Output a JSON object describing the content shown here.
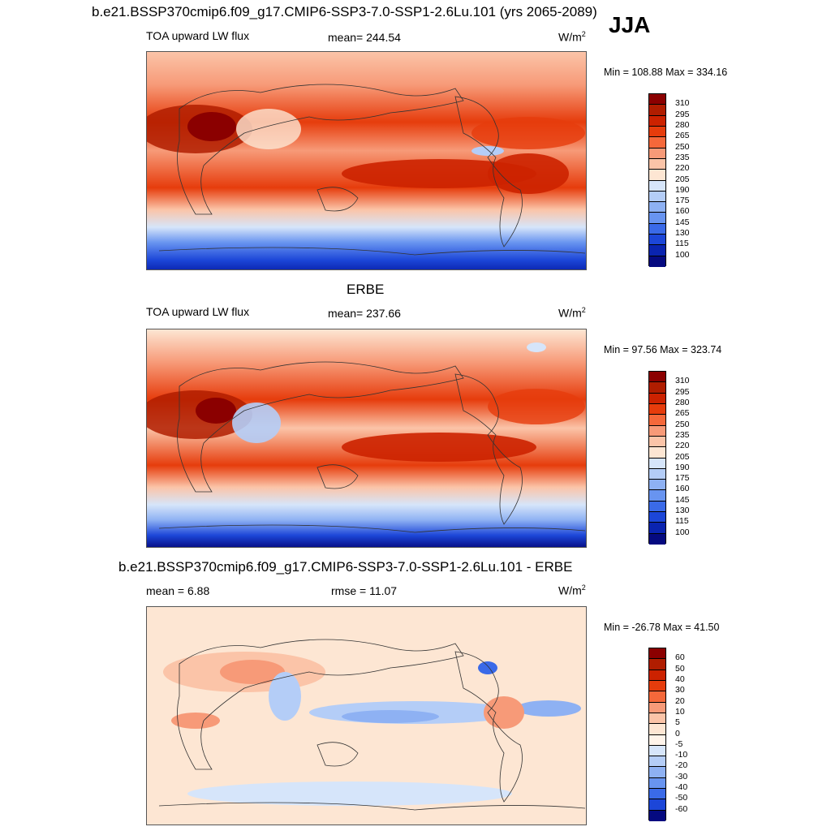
{
  "season": "JJA",
  "panels": [
    {
      "title": "b.e21.BSSP370cmip6.f09_g17.CMIP6-SSP3-7.0-SSP1-2.6Lu.101 (yrs 2065-2089)",
      "variable": "TOA upward LW flux",
      "stat_center": "mean= 244.54",
      "units": "W/m",
      "units_exp": "2",
      "minmax": "Min = 108.88 Max = 334.16"
    },
    {
      "title": "ERBE",
      "variable": "TOA upward LW flux",
      "stat_center": "mean= 237.66",
      "units": "W/m",
      "units_exp": "2",
      "minmax": "Min =  97.56 Max = 323.74"
    },
    {
      "title": "b.e21.BSSP370cmip6.f09_g17.CMIP6-SSP3-7.0-SSP1-2.6Lu.101 - ERBE",
      "variable": "mean =   6.88",
      "stat_center": "rmse =  11.07",
      "units": "W/m",
      "units_exp": "2",
      "minmax": "Min = -26.78 Max =  41.50"
    }
  ],
  "colorbars": {
    "absolute": {
      "labels": [
        "310",
        "295",
        "280",
        "265",
        "250",
        "235",
        "220",
        "205",
        "190",
        "175",
        "160",
        "145",
        "130",
        "115",
        "100"
      ],
      "colors": [
        "#8b0000",
        "#b01d00",
        "#cc2200",
        "#e63c0c",
        "#f5683a",
        "#f79a78",
        "#fbc4a8",
        "#fde6d3",
        "#d6e5fa",
        "#b4cdf7",
        "#8eb1f3",
        "#6894f0",
        "#3a6ae8",
        "#1c46d8",
        "#0a24b0",
        "#050a80"
      ]
    },
    "difference": {
      "labels": [
        "60",
        "50",
        "40",
        "30",
        "20",
        "10",
        "5",
        "0",
        "-5",
        "-10",
        "-20",
        "-30",
        "-40",
        "-50",
        "-60"
      ],
      "colors": [
        "#8b0000",
        "#b01d00",
        "#cc2200",
        "#e63c0c",
        "#f5683a",
        "#f79a78",
        "#fbc4a8",
        "#fde6d3",
        "#fff4ea",
        "#d6e5fa",
        "#b4cdf7",
        "#8eb1f3",
        "#6894f0",
        "#3a6ae8",
        "#1c46d8",
        "#050a80"
      ]
    }
  },
  "chart_data": [
    {
      "type": "heatmap",
      "title": "b.e21.BSSP370cmip6.f09_g17.CMIP6-SSP3-7.0-SSP1-2.6Lu.101 (yrs 2065-2089)",
      "variable": "TOA upward LW flux",
      "units": "W/m2",
      "mean": 244.54,
      "min": 108.88,
      "max": 334.16,
      "levels": [
        100,
        115,
        130,
        145,
        160,
        175,
        190,
        205,
        220,
        235,
        250,
        265,
        280,
        295,
        310
      ],
      "lat_bands": [
        {
          "lat": 80,
          "value": 225
        },
        {
          "lat": 60,
          "value": 215
        },
        {
          "lat": 40,
          "value": 255
        },
        {
          "lat": 20,
          "value": 275
        },
        {
          "lat": 0,
          "value": 245
        },
        {
          "lat": -20,
          "value": 278
        },
        {
          "lat": -40,
          "value": 240
        },
        {
          "lat": -60,
          "value": 200
        },
        {
          "lat": -80,
          "value": 120
        }
      ]
    },
    {
      "type": "heatmap",
      "title": "ERBE",
      "variable": "TOA upward LW flux",
      "units": "W/m2",
      "mean": 237.66,
      "min": 97.56,
      "max": 323.74,
      "levels": [
        100,
        115,
        130,
        145,
        160,
        175,
        190,
        205,
        220,
        235,
        250,
        265,
        280,
        295,
        310
      ],
      "lat_bands": [
        {
          "lat": 80,
          "value": 220
        },
        {
          "lat": 60,
          "value": 215
        },
        {
          "lat": 40,
          "value": 250
        },
        {
          "lat": 20,
          "value": 270
        },
        {
          "lat": 0,
          "value": 235
        },
        {
          "lat": -20,
          "value": 272
        },
        {
          "lat": -40,
          "value": 235
        },
        {
          "lat": -60,
          "value": 195
        },
        {
          "lat": -80,
          "value": 110
        }
      ]
    },
    {
      "type": "heatmap",
      "title": "b.e21.BSSP370cmip6.f09_g17.CMIP6-SSP3-7.0-SSP1-2.6Lu.101 - ERBE",
      "units": "W/m2",
      "mean": 6.88,
      "rmse": 11.07,
      "min": -26.78,
      "max": 41.5,
      "levels": [
        -60,
        -50,
        -40,
        -30,
        -20,
        -10,
        -5,
        0,
        5,
        10,
        20,
        30,
        40,
        50,
        60
      ],
      "lat_bands": [
        {
          "lat": 80,
          "value": 3
        },
        {
          "lat": 60,
          "value": 5
        },
        {
          "lat": 40,
          "value": 8
        },
        {
          "lat": 20,
          "value": 10
        },
        {
          "lat": 0,
          "value": -5
        },
        {
          "lat": -20,
          "value": 8
        },
        {
          "lat": -40,
          "value": 4
        },
        {
          "lat": -60,
          "value": -3
        },
        {
          "lat": -80,
          "value": 2
        }
      ]
    }
  ]
}
